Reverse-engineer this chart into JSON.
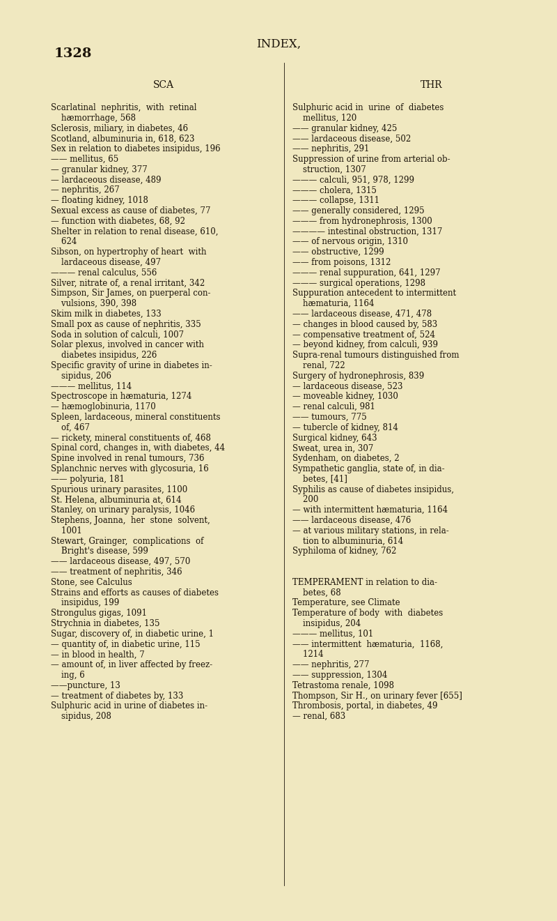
{
  "background_color": "#f0e8c0",
  "page_number": "1328",
  "title": "INDEX,",
  "col1_header": "SCA",
  "col2_header": "THR",
  "text_color": "#1a1208",
  "page_num_fontsize": 14,
  "title_fontsize": 12,
  "header_fontsize": 10,
  "body_fontsize": 8.5,
  "col1_lines": [
    "Scarlatinal  nephritis,  with  retinal",
    "    hæmorrhage, 568",
    "Sclerosis, miliary, in diabetes, 46",
    "Scotland, albuminuria in, 618, 623",
    "Sex in relation to diabetes insipidus, 196",
    "—— mellitus, 65",
    "— granular kidney, 377",
    "— lardaceous disease, 489",
    "— nephritis, 267",
    "— floating kidney, 1018",
    "Sexual excess as cause of diabetes, 77",
    "— function with diabetes, 68, 92",
    "Shelter in relation to renal disease, 610,",
    "    624",
    "Sibson, on hypertrophy of heart  with",
    "    lardaceous disease, 497",
    "——— renal calculus, 556",
    "Silver, nitrate of, a renal irritant, 342",
    "Simpson, Sir James, on puerperal con-",
    "    vulsions, 390, 398",
    "Skim milk in diabetes, 133",
    "Small pox as cause of nephritis, 335",
    "Soda in solution of calculi, 1007",
    "Solar plexus, involved in cancer with",
    "    diabetes insipidus, 226",
    "Specific gravity of urine in diabetes in-",
    "    sipidus, 206",
    "——— mellitus, 114",
    "Spectroscope in hæmaturia, 1274",
    "— hæmoglobinuria, 1170",
    "Spleen, lardaceous, mineral constituents",
    "    of, 467",
    "— rickety, mineral constituents of, 468",
    "Spinal cord, changes in, with diabetes, 44",
    "Spine involved in renal tumours, 736",
    "Splanchnic nerves with glycosuria, 16",
    "—— polyuria, 181",
    "Spurious urinary parasites, 1100",
    "St. Helena, albuminuria at, 614",
    "Stanley, on urinary paralysis, 1046",
    "Stephens, Joanna,  her  stone  solvent,",
    "    1001",
    "Stewart, Grainger,  complications  of",
    "    Bright's disease, 599",
    "—— lardaceous disease, 497, 570",
    "—— treatment of nephritis, 346",
    "Stone, see Calculus",
    "Strains and efforts as causes of diabetes",
    "    insipidus, 199",
    "Strongulus gigas, 1091",
    "Strychnia in diabetes, 135",
    "Sugar, discovery of, in diabetic urine, 1",
    "— quantity of, in diabetic urine, 115",
    "— in blood in health, 7",
    "— amount of, in liver affected by freez-",
    "    ing, 6",
    "——puncture, 13",
    "— treatment of diabetes by, 133",
    "Sulphuric acid in urine of diabetes in-",
    "    sipidus, 208"
  ],
  "col2_lines": [
    "Sulphuric acid in  urine  of  diabetes",
    "    mellitus, 120",
    "—— granular kidney, 425",
    "—— lardaceous disease, 502",
    "—— nephritis, 291",
    "Suppression of urine from arterial ob-",
    "    struction, 1307",
    "——— calculi, 951, 978, 1299",
    "——— cholera, 1315",
    "——— collapse, 1311",
    "—— generally considered, 1295",
    "——— from hydronephrosis, 1300",
    "———— intestinal obstruction, 1317",
    "—— of nervous origin, 1310",
    "—— obstructive, 1299",
    "—— from poisons, 1312",
    "——— renal suppuration, 641, 1297",
    "——— surgical operations, 1298",
    "Suppuration antecedent to intermittent",
    "    hæmaturia, 1164",
    "—— lardaceous disease, 471, 478",
    "— changes in blood caused by, 583",
    "— compensative treatment of, 524",
    "— beyond kidney, from calculi, 939",
    "Supra-renal tumours distinguished from",
    "    renal, 722",
    "Surgery of hydronephrosis, 839",
    "— lardaceous disease, 523",
    "— moveable kidney, 1030",
    "— renal calculi, 981",
    "—— tumours, 775",
    "— tubercle of kidney, 814",
    "Surgical kidney, 643",
    "Sweat, urea in, 307",
    "Sydenham, on diabetes, 2",
    "Sympathetic ganglia, state of, in dia-",
    "    betes, [41]",
    "Syphilis as cause of diabetes insipidus,",
    "    200",
    "— with intermittent hæmaturia, 1164",
    "—— lardaceous disease, 476",
    "— at various military stations, in rela-",
    "    tion to albuminuria, 614",
    "Syphiloma of kidney, 762",
    "",
    "",
    "TEMPERAMENT in relation to dia-",
    "    betes, 68",
    "Temperature, see Climate",
    "Temperature of body  with  diabetes",
    "    insipidus, 204",
    "——— mellitus, 101",
    "—— intermittent  hæmaturia,  1168,",
    "    1214",
    "—— nephritis, 277",
    "—— suppression, 1304",
    "Tetrastoma renale, 1098",
    "Thompson, Sir H., on urinary fever [655]",
    "Thrombosis, portal, in diabetes, 49",
    "— renal, 683"
  ]
}
